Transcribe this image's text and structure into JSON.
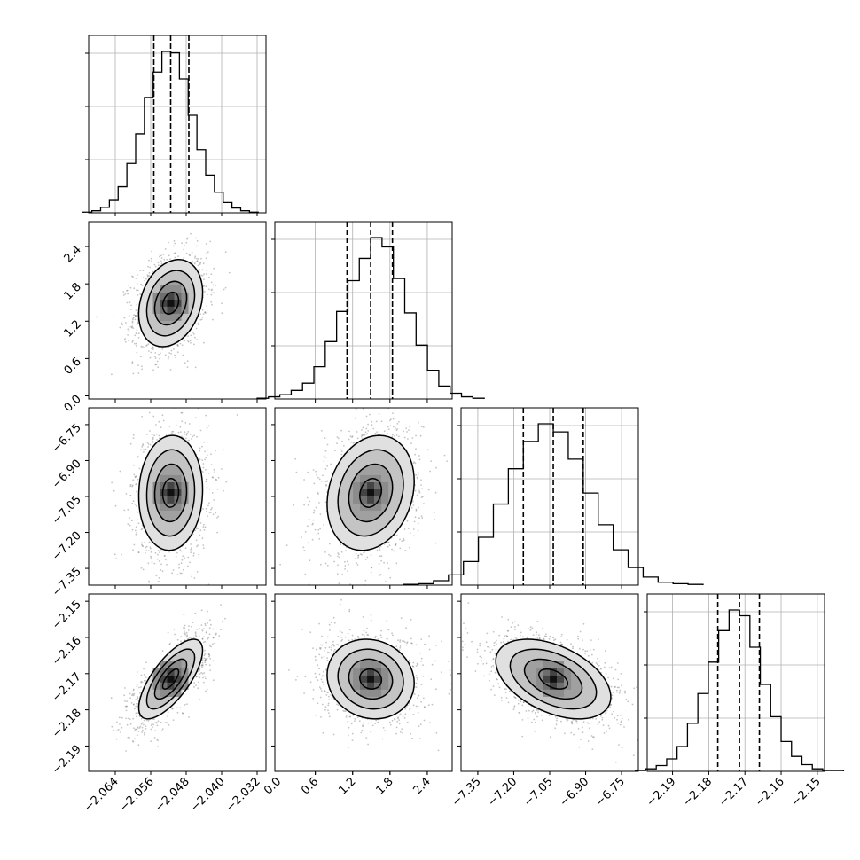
{
  "chart_data": {
    "type": "corner",
    "n_params": 4,
    "grid": true,
    "colors": {
      "line": "#000000",
      "grid": "#b0b0b0",
      "points": "#555555",
      "background": "#ffffff"
    },
    "params": [
      {
        "range": [
          -2.07,
          -2.03
        ],
        "ticks": [
          -2.064,
          -2.056,
          -2.048,
          -2.04,
          -2.032
        ],
        "tick_labels": [
          "−2.064",
          "−2.056",
          "−2.048",
          "−2.040",
          "−2.032"
        ],
        "quantiles": [
          -2.0553,
          -2.0515,
          -2.0474
        ],
        "hist_counts": [
          1,
          3,
          8,
          18,
          38,
          72,
          115,
          168,
          205,
          235,
          233,
          195,
          142,
          92,
          55,
          30,
          15,
          7,
          3,
          1
        ]
      },
      {
        "range": [
          -0.05,
          2.8
        ],
        "ticks": [
          0.0,
          0.6,
          1.2,
          1.8,
          2.4
        ],
        "tick_labels": [
          "0.0",
          "0.6",
          "1.2",
          "1.8",
          "2.4"
        ],
        "quantiles": [
          1.11,
          1.49,
          1.84
        ],
        "hist_counts": [
          1,
          3,
          6,
          12,
          22,
          45,
          80,
          122,
          165,
          196,
          225,
          212,
          168,
          120,
          75,
          40,
          18,
          8,
          3,
          1
        ]
      },
      {
        "range": [
          -7.42,
          -6.68
        ],
        "ticks": [
          -7.35,
          -7.2,
          -7.05,
          -6.9,
          -6.75
        ],
        "tick_labels": [
          "−7.35",
          "−7.20",
          "−7.05",
          "−6.90",
          "−6.75"
        ],
        "quantiles": [
          -7.16,
          -7.035,
          -6.91
        ],
        "hist_counts": [
          1,
          2,
          6,
          14,
          32,
          65,
          110,
          158,
          195,
          219,
          208,
          171,
          125,
          82,
          48,
          24,
          11,
          4,
          2,
          1
        ]
      },
      {
        "range": [
          -2.197,
          -2.148
        ],
        "ticks": [
          -2.19,
          -2.18,
          -2.17,
          -2.16,
          -2.15
        ],
        "tick_labels": [
          "−2.19",
          "−2.18",
          "−2.17",
          "−2.16",
          "−2.15"
        ],
        "quantiles": [
          -2.1775,
          -2.1715,
          -2.166
        ],
        "hist_counts": [
          1,
          3,
          7,
          15,
          30,
          58,
          94,
          132,
          170,
          195,
          188,
          150,
          105,
          66,
          36,
          18,
          8,
          3,
          1,
          1
        ]
      }
    ],
    "pairs": [
      {
        "x": 0,
        "y": 1,
        "mean": [
          -2.0515,
          1.49
        ],
        "sd": [
          0.0036,
          0.35
        ],
        "corr": 0.25
      },
      {
        "x": 0,
        "y": 2,
        "mean": [
          -2.0515,
          -7.035
        ],
        "sd": [
          0.0036,
          0.12
        ],
        "corr": 0.05
      },
      {
        "x": 1,
        "y": 2,
        "mean": [
          1.49,
          -7.035
        ],
        "sd": [
          0.35,
          0.12
        ],
        "corr": 0.2
      },
      {
        "x": 0,
        "y": 3,
        "mean": [
          -2.0515,
          -2.1715
        ],
        "sd": [
          0.0036,
          0.0055
        ],
        "corr": 0.72
      },
      {
        "x": 1,
        "y": 3,
        "mean": [
          1.49,
          -2.1715
        ],
        "sd": [
          0.35,
          0.0055
        ],
        "corr": -0.1
      },
      {
        "x": 2,
        "y": 3,
        "mean": [
          -7.035,
          -2.1715
        ],
        "sd": [
          0.12,
          0.0055
        ],
        "corr": -0.45
      }
    ],
    "contour_sigma_levels": [
      0.5,
      1.0,
      1.5,
      2.0
    ]
  }
}
